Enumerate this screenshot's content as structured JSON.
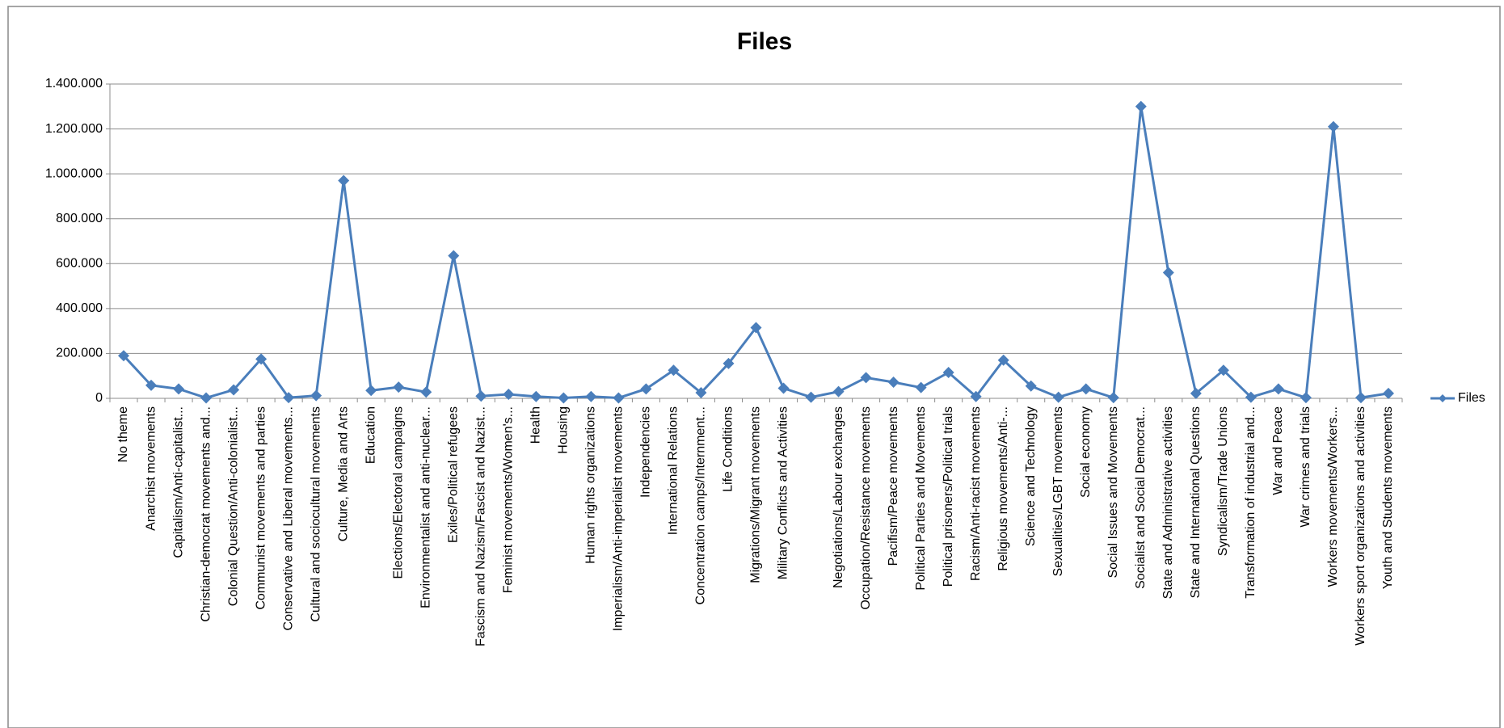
{
  "chart_data": {
    "type": "line",
    "title": "Files",
    "categories": [
      "No theme",
      "Anarchist movements",
      "Capitalism/Anti-capitalist...",
      "Christian-democrat movements and...",
      "Colonial Question/Anti-colonialist...",
      "Communist movements and parties",
      "Conservative and Liberal movements...",
      "Cultural and sociocultural movements",
      "Culture, Media and Arts",
      "Education",
      "Elections/Electoral campaigns",
      "Environmentalist and anti-nuclear...",
      "Exiles/Political refugees",
      "Fascism and Nazism/Fascist and Nazist...",
      "Feminist movements/Women's...",
      "Health",
      "Housing",
      "Human rights organizations",
      "Imperialism/Anti-imperialist movements",
      "Independencies",
      "International Relations",
      "Concentration camps/Internment...",
      "Life Conditions",
      "Migrations/Migrant movements",
      "Military Conflicts and Activities",
      null,
      "Negotiations/Labour exchanges",
      "Occupation/Resistance movements",
      "Pacifism/Peace movements",
      "Political Parties and Movements",
      "Political prisoners/Political trials",
      "Racism/Anti-racist movements",
      "Religious movements/Anti-...",
      "Science and Technology",
      "Sexualities/LGBT movements",
      "Social economy",
      "Social Issues and Movements",
      "Socialist and Social Democrat...",
      "State and Administrative activities",
      "State and International Questions",
      "Syndicalism/Trade Unions",
      "Transformation of industrial and...",
      "War and Peace",
      "War crimes and trials",
      "Workers movements/Workers...",
      "Workers sport organizations and activities",
      "Youth and Students movements"
    ],
    "series": [
      {
        "name": "Files",
        "color": "#4a7ebb",
        "values": [
          190000,
          58000,
          42000,
          2000,
          38000,
          175000,
          3000,
          12000,
          970000,
          35000,
          50000,
          28000,
          635000,
          10000,
          18000,
          8000,
          2000,
          8000,
          2000,
          42000,
          125000,
          25000,
          155000,
          315000,
          45000,
          5000,
          30000,
          92000,
          72000,
          48000,
          115000,
          8000,
          170000,
          55000,
          5000,
          42000,
          3000,
          1300000,
          560000,
          22000,
          125000,
          5000,
          42000,
          3000,
          1210000,
          3000,
          22000
        ]
      }
    ],
    "ylim": [
      0,
      1400000
    ],
    "yticks": [
      0,
      {
        "value": 200000,
        "label": "200.000"
      },
      {
        "value": 400000,
        "label": "400.000"
      },
      {
        "value": 600000,
        "label": "600.000"
      },
      {
        "value": 800000,
        "label": "800.000"
      },
      {
        "value": 1000000,
        "label": "1.000.000"
      },
      {
        "value": 1200000,
        "label": "1.200.000"
      },
      {
        "value": 1400000,
        "label": "1.400.000"
      }
    ],
    "grid": true,
    "legend": "right"
  }
}
